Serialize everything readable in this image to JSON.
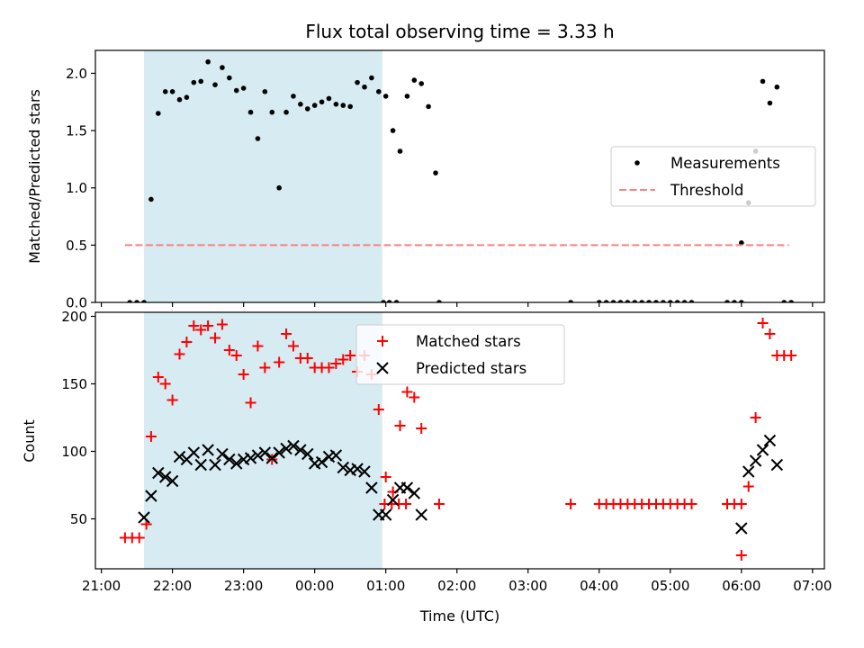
{
  "chart_data": [
    {
      "type": "scatter",
      "title": "Flux total observing time = 3.33 h",
      "ylabel": "Matched/Predicted stars",
      "xlabel": "",
      "ylim": [
        0,
        2.2
      ],
      "yticks": [
        "0.0",
        "0.5",
        "1.0",
        "1.5",
        "2.0"
      ],
      "xlim": [
        "20:55",
        "07:10"
      ],
      "observing_window": [
        "21:36",
        "00:57"
      ],
      "observing_window_color": "#add8e6",
      "legend_position": "center-right",
      "series": [
        {
          "name": "Measurements",
          "color": "#000000",
          "marker": "dot",
          "points": [
            [
              "21:24",
              0
            ],
            [
              "21:30",
              0
            ],
            [
              "21:36",
              0
            ],
            [
              "21:42",
              0.9
            ],
            [
              "21:48",
              1.65
            ],
            [
              "21:54",
              1.84
            ],
            [
              "22:00",
              1.84
            ],
            [
              "22:06",
              1.77
            ],
            [
              "22:12",
              1.79
            ],
            [
              "22:18",
              1.92
            ],
            [
              "22:24",
              1.93
            ],
            [
              "22:30",
              2.1
            ],
            [
              "22:36",
              1.9
            ],
            [
              "22:42",
              2.05
            ],
            [
              "22:48",
              1.96
            ],
            [
              "22:54",
              1.85
            ],
            [
              "23:00",
              1.87
            ],
            [
              "23:06",
              1.66
            ],
            [
              "23:12",
              1.43
            ],
            [
              "23:18",
              1.84
            ],
            [
              "23:24",
              1.66
            ],
            [
              "23:30",
              1.0
            ],
            [
              "23:36",
              1.66
            ],
            [
              "23:42",
              1.8
            ],
            [
              "23:48",
              1.73
            ],
            [
              "23:54",
              1.69
            ],
            [
              "00:00",
              1.72
            ],
            [
              "00:06",
              1.75
            ],
            [
              "00:12",
              1.78
            ],
            [
              "00:18",
              1.73
            ],
            [
              "00:24",
              1.72
            ],
            [
              "00:30",
              1.71
            ],
            [
              "00:36",
              1.92
            ],
            [
              "00:42",
              1.88
            ],
            [
              "00:48",
              1.96
            ],
            [
              "00:54",
              1.84
            ],
            [
              "01:00",
              1.8
            ],
            [
              "01:06",
              1.5
            ],
            [
              "01:12",
              1.32
            ],
            [
              "01:18",
              1.8
            ],
            [
              "01:24",
              1.94
            ],
            [
              "01:30",
              1.91
            ],
            [
              "01:36",
              1.71
            ],
            [
              "01:42",
              1.13
            ],
            [
              "00:58",
              0
            ],
            [
              "01:03",
              0
            ],
            [
              "01:09",
              0
            ],
            [
              "01:45",
              0
            ],
            [
              "03:36",
              0
            ],
            [
              "04:00",
              0
            ],
            [
              "04:06",
              0
            ],
            [
              "04:12",
              0
            ],
            [
              "04:18",
              0
            ],
            [
              "04:24",
              0
            ],
            [
              "04:30",
              0
            ],
            [
              "04:36",
              0
            ],
            [
              "04:42",
              0
            ],
            [
              "04:48",
              0
            ],
            [
              "04:54",
              0
            ],
            [
              "05:00",
              0
            ],
            [
              "05:06",
              0
            ],
            [
              "05:12",
              0
            ],
            [
              "05:18",
              0
            ],
            [
              "05:48",
              0
            ],
            [
              "05:54",
              0
            ],
            [
              "06:00",
              0
            ],
            [
              "06:00",
              0.52
            ],
            [
              "06:06",
              0.87
            ],
            [
              "06:12",
              1.32
            ],
            [
              "06:18",
              1.93
            ],
            [
              "06:24",
              1.74
            ],
            [
              "06:30",
              1.88
            ],
            [
              "06:36",
              0
            ],
            [
              "06:42",
              0
            ]
          ]
        },
        {
          "name": "Threshold",
          "color": "#ff7f7f",
          "style": "dashed",
          "points": [
            [
              "21:20",
              0.5
            ],
            [
              "06:40",
              0.5
            ]
          ]
        }
      ]
    },
    {
      "type": "scatter",
      "title": "",
      "ylabel": "Count",
      "xlabel": "Time (UTC)",
      "ylim": [
        13,
        203
      ],
      "yticks": [
        "50",
        "100",
        "150",
        "200"
      ],
      "xlim": [
        "20:55",
        "07:10"
      ],
      "xticks": [
        "21:00",
        "22:00",
        "23:00",
        "00:00",
        "01:00",
        "02:00",
        "03:00",
        "04:00",
        "05:00",
        "06:00",
        "07:00"
      ],
      "observing_window": [
        "21:36",
        "00:57"
      ],
      "observing_window_color": "#add8e6",
      "legend_position": "upper-center",
      "series": [
        {
          "name": "Matched stars",
          "color": "#ff0000",
          "marker": "plus",
          "points": [
            [
              "21:20",
              36
            ],
            [
              "21:26",
              36
            ],
            [
              "21:32",
              36
            ],
            [
              "21:38",
              46
            ],
            [
              "21:42",
              111
            ],
            [
              "21:48",
              155
            ],
            [
              "21:54",
              150
            ],
            [
              "22:00",
              138
            ],
            [
              "22:06",
              172
            ],
            [
              "22:12",
              181
            ],
            [
              "22:18",
              193
            ],
            [
              "22:24",
              190
            ],
            [
              "22:30",
              193
            ],
            [
              "22:36",
              184
            ],
            [
              "22:42",
              194
            ],
            [
              "22:48",
              175
            ],
            [
              "22:54",
              171
            ],
            [
              "23:00",
              157
            ],
            [
              "23:06",
              136
            ],
            [
              "23:12",
              178
            ],
            [
              "23:18",
              162
            ],
            [
              "23:24",
              94
            ],
            [
              "23:30",
              166
            ],
            [
              "23:36",
              187
            ],
            [
              "23:42",
              178
            ],
            [
              "23:48",
              169
            ],
            [
              "23:54",
              169
            ],
            [
              "00:00",
              162
            ],
            [
              "00:06",
              162
            ],
            [
              "00:12",
              162
            ],
            [
              "00:18",
              165
            ],
            [
              "00:24",
              168
            ],
            [
              "00:30",
              171
            ],
            [
              "00:36",
              159
            ],
            [
              "00:42",
              171
            ],
            [
              "00:48",
              157
            ],
            [
              "00:54",
              131
            ],
            [
              "01:00",
              81
            ],
            [
              "01:06",
              70
            ],
            [
              "01:12",
              119
            ],
            [
              "01:18",
              144
            ],
            [
              "01:24",
              140
            ],
            [
              "01:30",
              117
            ],
            [
              "00:59",
              61
            ],
            [
              "01:05",
              61
            ],
            [
              "01:11",
              61
            ],
            [
              "01:17",
              61
            ],
            [
              "01:45",
              61
            ],
            [
              "03:36",
              61
            ],
            [
              "04:00",
              61
            ],
            [
              "04:06",
              61
            ],
            [
              "04:12",
              61
            ],
            [
              "04:18",
              61
            ],
            [
              "04:24",
              61
            ],
            [
              "04:30",
              61
            ],
            [
              "04:36",
              61
            ],
            [
              "04:42",
              61
            ],
            [
              "04:48",
              61
            ],
            [
              "04:54",
              61
            ],
            [
              "05:00",
              61
            ],
            [
              "05:06",
              61
            ],
            [
              "05:12",
              61
            ],
            [
              "05:18",
              61
            ],
            [
              "05:48",
              61
            ],
            [
              "05:54",
              61
            ],
            [
              "06:00",
              61
            ],
            [
              "06:00",
              23
            ],
            [
              "06:06",
              74
            ],
            [
              "06:12",
              125
            ],
            [
              "06:18",
              195
            ],
            [
              "06:24",
              187
            ],
            [
              "06:30",
              171
            ],
            [
              "06:36",
              171
            ],
            [
              "06:42",
              171
            ]
          ]
        },
        {
          "name": "Predicted stars",
          "color": "#000000",
          "marker": "x",
          "points": [
            [
              "21:36",
              51
            ],
            [
              "21:42",
              67
            ],
            [
              "21:48",
              84
            ],
            [
              "21:54",
              81
            ],
            [
              "22:00",
              78
            ],
            [
              "22:06",
              96
            ],
            [
              "22:12",
              94
            ],
            [
              "22:18",
              99
            ],
            [
              "22:24",
              90
            ],
            [
              "22:30",
              101
            ],
            [
              "22:36",
              90
            ],
            [
              "22:42",
              98
            ],
            [
              "22:48",
              94
            ],
            [
              "22:54",
              91
            ],
            [
              "23:00",
              94
            ],
            [
              "23:06",
              95
            ],
            [
              "23:12",
              97
            ],
            [
              "23:18",
              99
            ],
            [
              "23:24",
              95
            ],
            [
              "23:30",
              99
            ],
            [
              "23:36",
              102
            ],
            [
              "23:42",
              104
            ],
            [
              "23:48",
              101
            ],
            [
              "23:54",
              98
            ],
            [
              "00:00",
              91
            ],
            [
              "00:06",
              92
            ],
            [
              "00:12",
              96
            ],
            [
              "00:18",
              97
            ],
            [
              "00:24",
              88
            ],
            [
              "00:30",
              86
            ],
            [
              "00:36",
              87
            ],
            [
              "00:42",
              85
            ],
            [
              "00:48",
              73
            ],
            [
              "00:54",
              53
            ],
            [
              "01:00",
              53
            ],
            [
              "01:06",
              64
            ],
            [
              "01:12",
              73
            ],
            [
              "01:18",
              73
            ],
            [
              "01:24",
              69
            ],
            [
              "01:30",
              53
            ],
            [
              "06:00",
              43
            ],
            [
              "06:06",
              85
            ],
            [
              "06:12",
              93
            ],
            [
              "06:18",
              101
            ],
            [
              "06:24",
              108
            ],
            [
              "06:30",
              90
            ]
          ]
        }
      ]
    }
  ]
}
